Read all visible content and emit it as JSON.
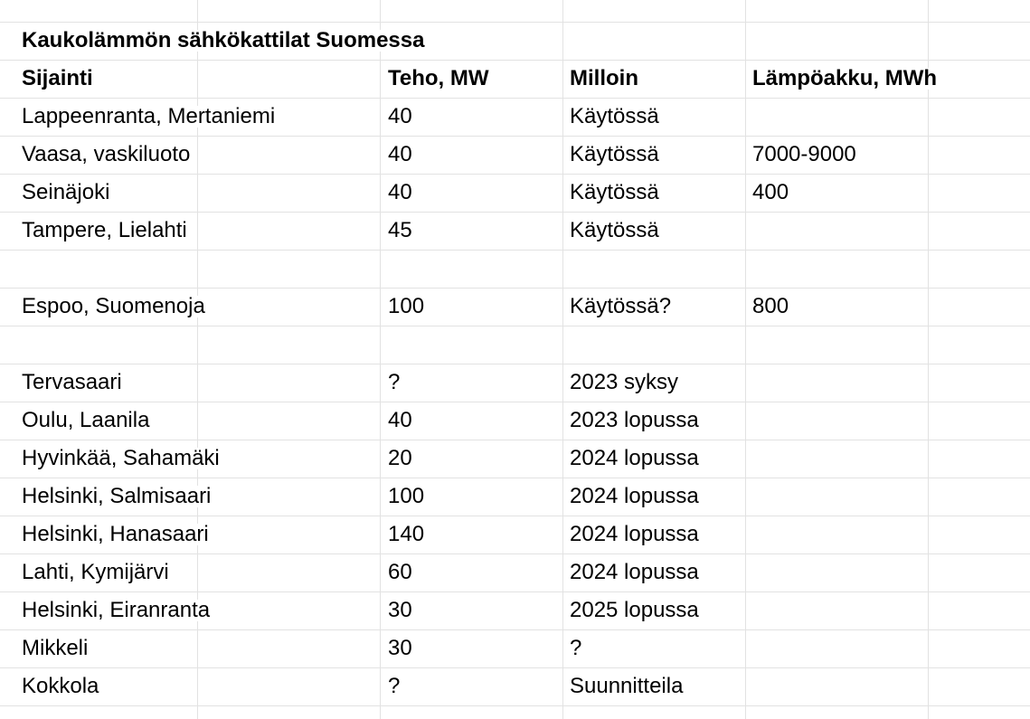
{
  "title": "Kaukolämmön sähkökattilat Suomessa",
  "headers": [
    "Sijainti",
    "Teho, MW",
    "Milloin",
    "Lämpöakku, MWh"
  ],
  "rows": [
    [
      "Lappeenranta, Mertaniemi",
      "40",
      "Käytössä",
      ""
    ],
    [
      "Vaasa, vaskiluoto",
      "40",
      "Käytössä",
      "7000-9000"
    ],
    [
      "Seinäjoki",
      "40",
      "Käytössä",
      "400"
    ],
    [
      "Tampere, Lielahti",
      "45",
      "Käytössä",
      ""
    ],
    [
      "",
      "",
      "",
      ""
    ],
    [
      "Espoo, Suomenoja",
      "100",
      "Käytössä?",
      "800"
    ],
    [
      "",
      "",
      "",
      ""
    ],
    [
      "Tervasaari",
      "?",
      "2023 syksy",
      ""
    ],
    [
      "Oulu, Laanila",
      "40",
      "2023 lopussa",
      ""
    ],
    [
      "Hyvinkää, Sahamäki",
      "20",
      "2024 lopussa",
      ""
    ],
    [
      "Helsinki, Salmisaari",
      "100",
      "2024 lopussa",
      ""
    ],
    [
      "Helsinki, Hanasaari",
      "140",
      "2024 lopussa",
      ""
    ],
    [
      "Lahti, Kymijärvi",
      "60",
      "2024 lopussa",
      ""
    ],
    [
      "Helsinki, Eiranranta",
      "30",
      "2025 lopussa",
      ""
    ],
    [
      "Mikkeli",
      "30",
      "?",
      ""
    ],
    [
      "Kokkola",
      "?",
      "Suunnitteila",
      ""
    ]
  ]
}
